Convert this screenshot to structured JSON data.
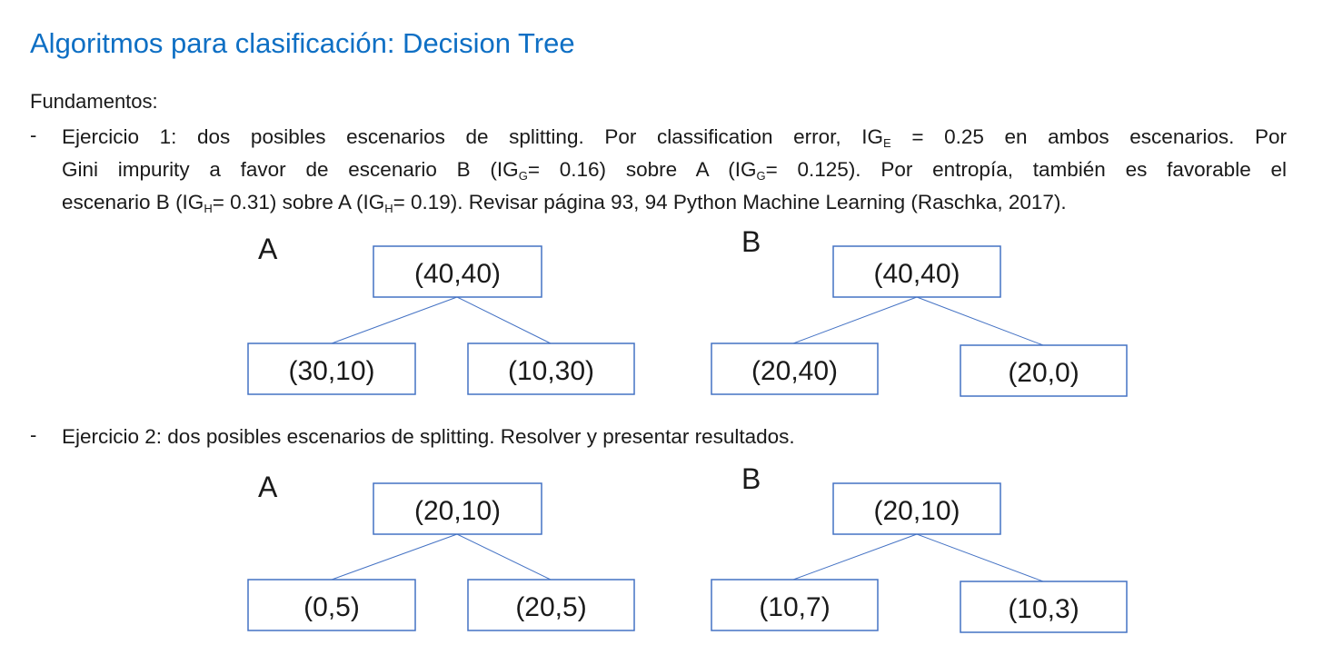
{
  "title": "Algoritmos para clasificación: Decision Tree",
  "section_label": "Fundamentos:",
  "bullet_char": "-",
  "ex1": {
    "l1_a": "Ejercicio 1: dos posibles escenarios de splitting. Por classification error, IG",
    "l1_sub": "E",
    "l1_b": " = 0.25 en ambos escenarios. Por",
    "l2_a": "Gini impurity a favor de escenario B (IG",
    "l2_sub1": "G",
    "l2_b": "= 0.16) sobre A (IG",
    "l2_sub2": "G",
    "l2_c": "= 0.125). Por entropía, también es favorable el",
    "l3_a": "escenario B (IG",
    "l3_sub1": "H",
    "l3_b": "= 0.31) sobre A (IG",
    "l3_sub2": "H",
    "l3_c": "= 0.19).  Revisar página 93, 94 Python Machine Learning (Raschka, 2017)."
  },
  "ex2": {
    "text": "Ejercicio 2: dos posibles escenarios de splitting. Resolver y presentar resultados."
  },
  "trees": {
    "ex1": {
      "A": {
        "label": "A",
        "root": "(40,40)",
        "left": "(30,10)",
        "right": "(10,30)"
      },
      "B": {
        "label": "B",
        "root": "(40,40)",
        "left": "(20,40)",
        "right": "(20,0)"
      }
    },
    "ex2": {
      "A": {
        "label": "A",
        "root": "(20,10)",
        "left": "(0,5)",
        "right": "(20,5)"
      },
      "B": {
        "label": "B",
        "root": "(20,10)",
        "left": "(10,7)",
        "right": "(10,3)"
      }
    }
  },
  "colors": {
    "title": "#0e6fc4",
    "box_border": "#4472c4",
    "edge": "#4472c4",
    "text": "#1a1a1a"
  }
}
